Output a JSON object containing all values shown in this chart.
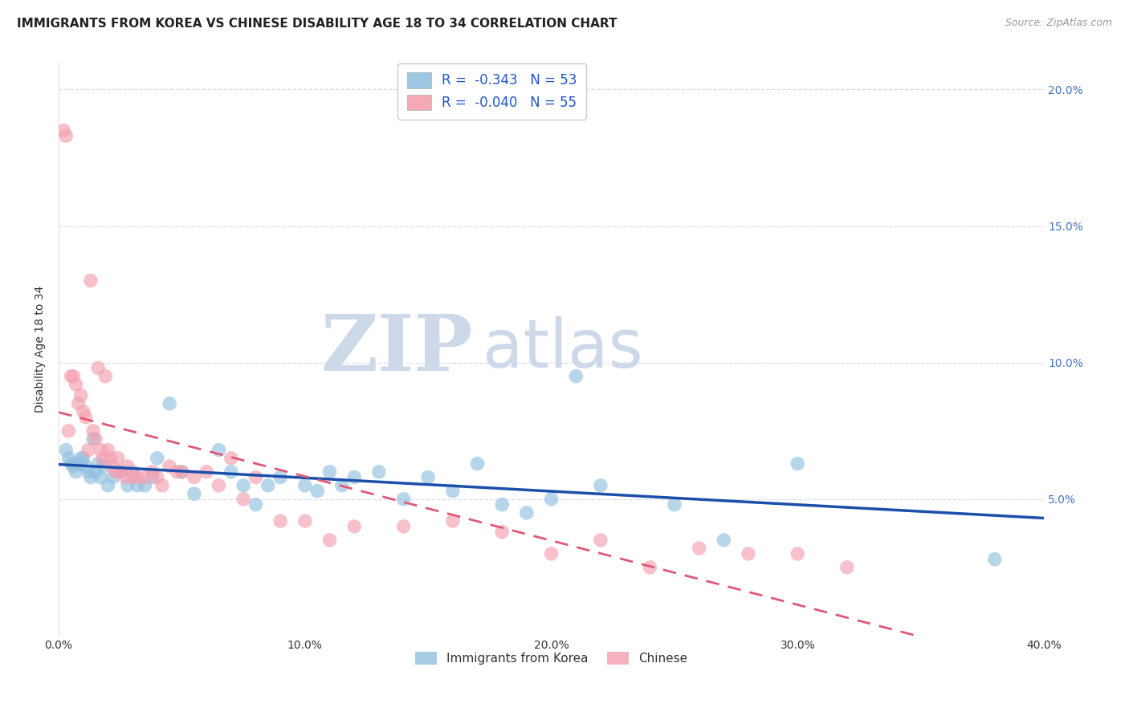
{
  "title": "IMMIGRANTS FROM KOREA VS CHINESE DISABILITY AGE 18 TO 34 CORRELATION CHART",
  "source": "Source: ZipAtlas.com",
  "ylabel_left": "Disability Age 18 to 34",
  "watermark_zip": "ZIP",
  "watermark_atlas": "atlas",
  "xmin": 0.0,
  "xmax": 0.4,
  "ymin": 0.0,
  "ymax": 0.21,
  "yticks_right": [
    0.05,
    0.1,
    0.15,
    0.2
  ],
  "ytick_labels_right": [
    "5.0%",
    "10.0%",
    "15.0%",
    "20.0%"
  ],
  "xticks": [
    0.0,
    0.1,
    0.2,
    0.3,
    0.4
  ],
  "xtick_labels": [
    "0.0%",
    "10.0%",
    "20.0%",
    "30.0%",
    "40.0%"
  ],
  "legend_label_korea": "Immigrants from Korea",
  "legend_label_chinese": "Chinese",
  "korea_color": "#92c0e0",
  "chinese_color": "#f4a0b0",
  "korea_line_color": "#1a4faa",
  "chinese_line_color": "#e05878",
  "korea_R": -0.343,
  "korea_N": 53,
  "chinese_R": -0.04,
  "chinese_N": 55,
  "korea_x": [
    0.003,
    0.004,
    0.005,
    0.006,
    0.007,
    0.008,
    0.009,
    0.01,
    0.011,
    0.012,
    0.013,
    0.014,
    0.015,
    0.016,
    0.017,
    0.018,
    0.02,
    0.022,
    0.025,
    0.028,
    0.03,
    0.032,
    0.035,
    0.038,
    0.04,
    0.045,
    0.05,
    0.055,
    0.065,
    0.07,
    0.075,
    0.08,
    0.085,
    0.09,
    0.1,
    0.105,
    0.11,
    0.115,
    0.12,
    0.13,
    0.14,
    0.15,
    0.16,
    0.17,
    0.18,
    0.19,
    0.2,
    0.21,
    0.22,
    0.25,
    0.27,
    0.3,
    0.38
  ],
  "korea_y": [
    0.068,
    0.065,
    0.063,
    0.062,
    0.06,
    0.063,
    0.065,
    0.065,
    0.062,
    0.06,
    0.058,
    0.072,
    0.06,
    0.063,
    0.058,
    0.062,
    0.055,
    0.058,
    0.06,
    0.055,
    0.06,
    0.055,
    0.055,
    0.058,
    0.065,
    0.085,
    0.06,
    0.052,
    0.068,
    0.06,
    0.055,
    0.048,
    0.055,
    0.058,
    0.055,
    0.053,
    0.06,
    0.055,
    0.058,
    0.06,
    0.05,
    0.058,
    0.053,
    0.063,
    0.048,
    0.045,
    0.05,
    0.095,
    0.055,
    0.048,
    0.035,
    0.063,
    0.028
  ],
  "chinese_x": [
    0.002,
    0.003,
    0.004,
    0.005,
    0.006,
    0.007,
    0.008,
    0.009,
    0.01,
    0.011,
    0.012,
    0.013,
    0.014,
    0.015,
    0.016,
    0.017,
    0.018,
    0.019,
    0.02,
    0.021,
    0.022,
    0.023,
    0.024,
    0.025,
    0.027,
    0.028,
    0.03,
    0.032,
    0.035,
    0.038,
    0.04,
    0.042,
    0.045,
    0.048,
    0.05,
    0.055,
    0.06,
    0.065,
    0.07,
    0.075,
    0.08,
    0.09,
    0.1,
    0.11,
    0.12,
    0.14,
    0.16,
    0.18,
    0.2,
    0.22,
    0.24,
    0.26,
    0.28,
    0.3,
    0.32
  ],
  "chinese_y": [
    0.185,
    0.183,
    0.075,
    0.095,
    0.095,
    0.092,
    0.085,
    0.088,
    0.082,
    0.08,
    0.068,
    0.13,
    0.075,
    0.072,
    0.098,
    0.068,
    0.065,
    0.095,
    0.068,
    0.065,
    0.062,
    0.06,
    0.065,
    0.06,
    0.058,
    0.062,
    0.058,
    0.058,
    0.058,
    0.06,
    0.058,
    0.055,
    0.062,
    0.06,
    0.06,
    0.058,
    0.06,
    0.055,
    0.065,
    0.05,
    0.058,
    0.042,
    0.042,
    0.035,
    0.04,
    0.04,
    0.042,
    0.038,
    0.03,
    0.035,
    0.025,
    0.032,
    0.03,
    0.03,
    0.025
  ],
  "grid_color": "#d8dfe8",
  "background_color": "#ffffff",
  "title_fontsize": 11,
  "axis_label_fontsize": 10,
  "tick_fontsize": 10,
  "right_tick_color": "#4472c4",
  "watermark_color": "#cdd8e8",
  "watermark_fontsize": 70
}
